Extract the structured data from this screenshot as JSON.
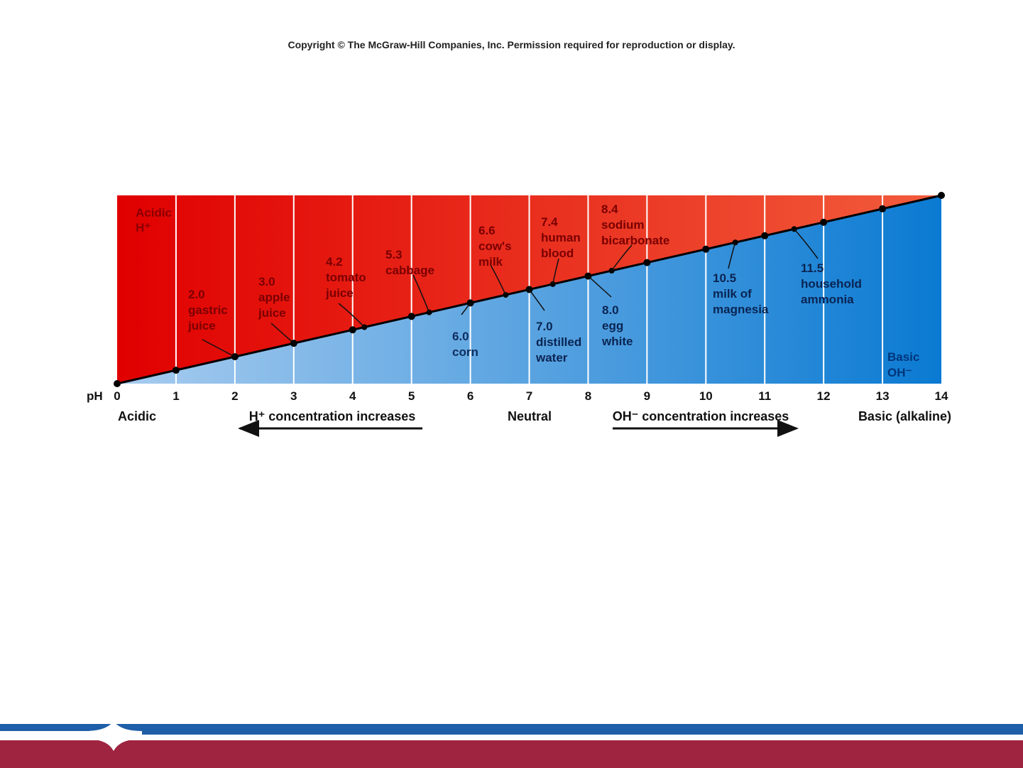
{
  "copyright": "Copyright © The McGraw-Hill Companies, Inc. Permission required for reproduction or display.",
  "diagram": {
    "ph_prefix": "pH",
    "ph_ticks": [
      "0",
      "1",
      "2",
      "3",
      "4",
      "5",
      "6",
      "7",
      "8",
      "9",
      "10",
      "11",
      "12",
      "13",
      "14"
    ],
    "acidic_corner": [
      "Acidic",
      "H⁺"
    ],
    "basic_corner": [
      "Basic",
      "OH⁻"
    ],
    "bottom": {
      "acidic": "Acidic",
      "h_increase": "H⁺ concentration increases",
      "neutral": "Neutral",
      "oh_increase": "OH⁻ concentration increases",
      "basic": "Basic (alkaline)"
    },
    "substances": [
      {
        "ph": 2.0,
        "lines": [
          "2.0",
          "gastric",
          "juice"
        ]
      },
      {
        "ph": 3.0,
        "lines": [
          "3.0",
          "apple",
          "juice"
        ]
      },
      {
        "ph": 4.2,
        "lines": [
          "4.2",
          "tomato",
          "juice"
        ]
      },
      {
        "ph": 5.3,
        "lines": [
          "5.3",
          "cabbage"
        ]
      },
      {
        "ph": 6.0,
        "lines": [
          "6.0",
          "corn"
        ]
      },
      {
        "ph": 6.6,
        "lines": [
          "6.6",
          "cow's",
          "milk"
        ]
      },
      {
        "ph": 7.0,
        "lines": [
          "7.0",
          "distilled",
          "water"
        ]
      },
      {
        "ph": 7.4,
        "lines": [
          "7.4",
          "human",
          "blood"
        ]
      },
      {
        "ph": 8.0,
        "lines": [
          "8.0",
          "egg",
          "white"
        ]
      },
      {
        "ph": 8.4,
        "lines": [
          "8.4",
          "sodium",
          "bicarbonate"
        ]
      },
      {
        "ph": 10.5,
        "lines": [
          "10.5",
          "milk of",
          "magnesia"
        ]
      },
      {
        "ph": 11.5,
        "lines": [
          "11.5",
          "household",
          "ammonia"
        ]
      }
    ],
    "colors": {
      "acid_dark": "#e00000",
      "acid_light": "#f25c3c",
      "base_light": "#a8ccef",
      "base_dark": "#0a7ad2",
      "divider": "#ffffff"
    }
  },
  "footer": {
    "colors": {
      "top": "#1f5ea8",
      "bottom": "#9e2440",
      "gap": "#ffffff"
    }
  }
}
